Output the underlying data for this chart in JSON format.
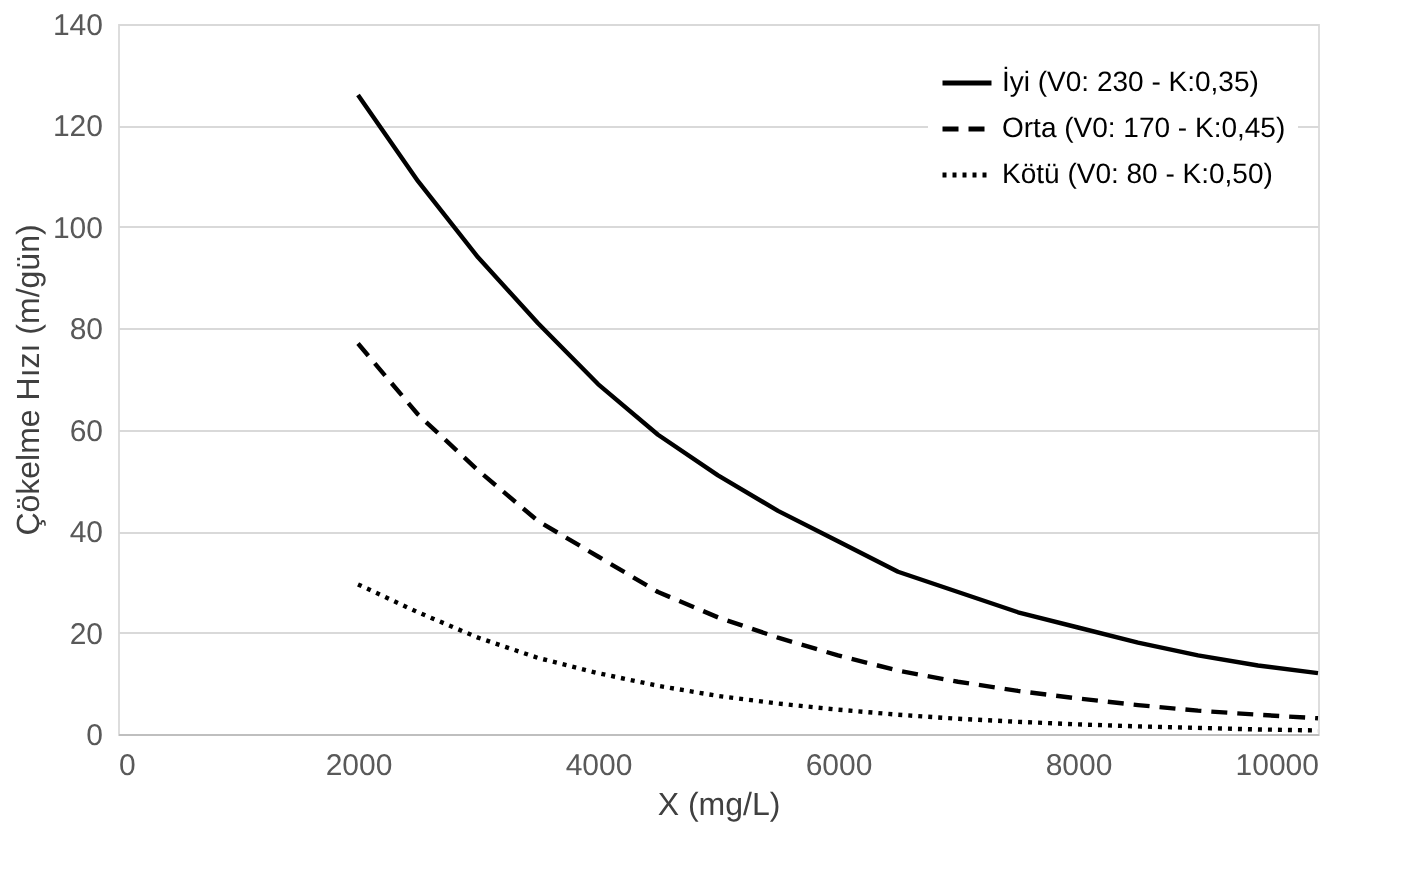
{
  "chart_data": {
    "type": "line",
    "xlabel": "X (mg/L)",
    "ylabel": "Çökelme Hızı (m/gün)",
    "x": [
      2000,
      2500,
      3000,
      3500,
      4000,
      4500,
      5000,
      5500,
      6000,
      6500,
      7000,
      7500,
      8000,
      8500,
      9000,
      9500,
      10000
    ],
    "series": [
      {
        "name": "İyi    (V0: 230 - K:0,35)",
        "color": "#000000",
        "line_style": "solid",
        "values": [
          126,
          109,
          94,
          81,
          69,
          59,
          51,
          44,
          38,
          32,
          28,
          24,
          21,
          18,
          15.5,
          13.5,
          12
        ]
      },
      {
        "name": "Orta (V0: 170 - K:0,45)",
        "color": "#000000",
        "line_style": "dashed",
        "values": [
          77,
          63,
          52,
          42,
          35,
          28,
          23,
          19,
          15.5,
          12.5,
          10.3,
          8.5,
          7,
          5.7,
          4.6,
          3.8,
          3.1
        ]
      },
      {
        "name": "Kötü (V0:  80 - K:0,50)",
        "color": "#000000",
        "line_style": "dotted",
        "values": [
          29.5,
          24,
          19,
          15,
          12,
          9.5,
          7.5,
          6,
          4.8,
          3.8,
          3,
          2.4,
          1.9,
          1.5,
          1.2,
          0.9,
          0.7
        ]
      }
    ],
    "xlim": [
      0,
      10000
    ],
    "xticks": [
      0,
      2000,
      4000,
      6000,
      8000,
      10000
    ],
    "ylim": [
      0,
      140
    ],
    "yticks": [
      0,
      20,
      40,
      60,
      80,
      100,
      120,
      140
    ],
    "grid": "y",
    "legend": "top right",
    "marker": "none"
  }
}
